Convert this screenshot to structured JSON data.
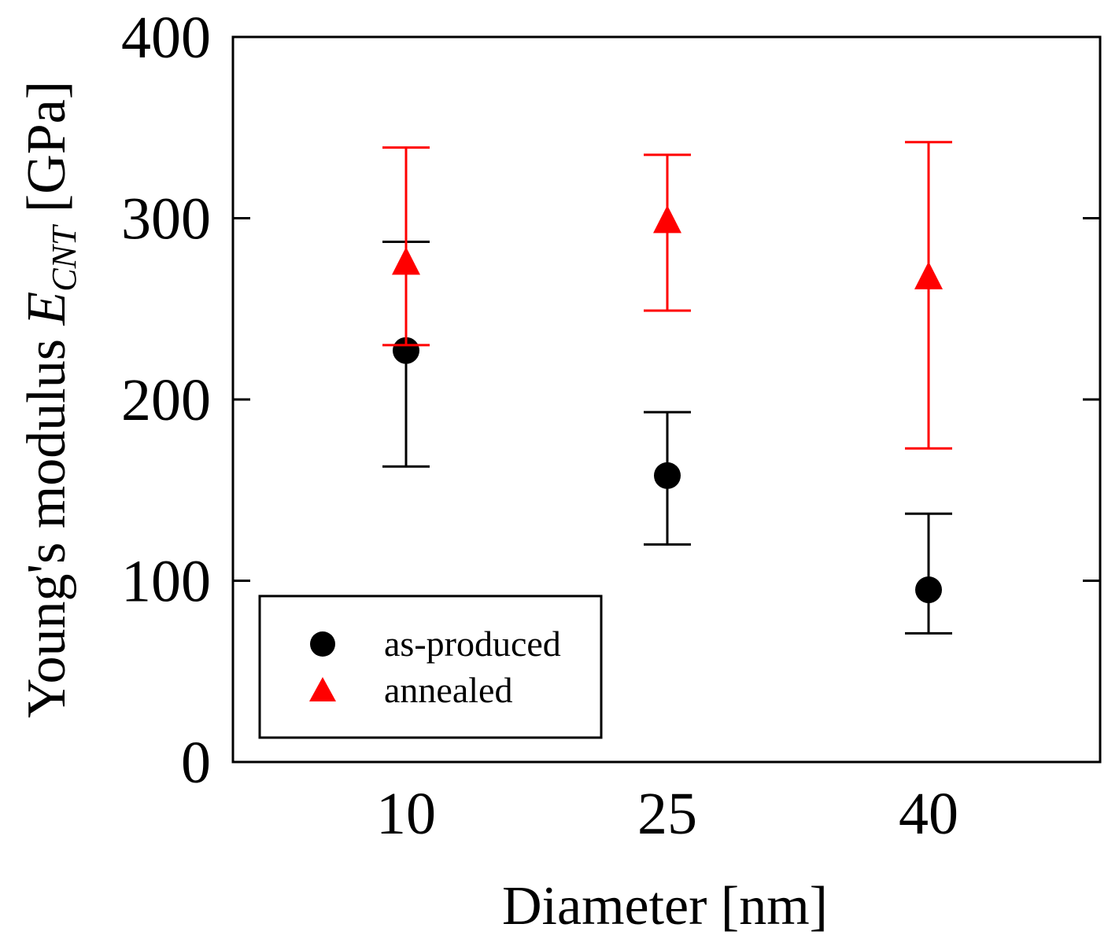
{
  "chart_data": {
    "type": "scatter",
    "xlabel": "Diameter [nm]",
    "ylabel": {
      "prefix": "Young's modulus ",
      "symbol": "E",
      "subscript": "CNT",
      "unit": " [GPa]"
    },
    "categories": [
      "10",
      "25",
      "40"
    ],
    "ylim": [
      0,
      400
    ],
    "yticks": [
      0,
      100,
      200,
      300,
      400
    ],
    "legend_position": "bottom-left",
    "series": [
      {
        "name": "as-produced",
        "marker": "circle",
        "color": "#000000",
        "values": [
          227,
          158,
          95
        ],
        "err_low": [
          163,
          120,
          71
        ],
        "err_high": [
          287,
          193,
          137
        ]
      },
      {
        "name": "annealed",
        "marker": "triangle",
        "color": "#ff0000",
        "values": [
          275,
          298,
          267
        ],
        "err_low": [
          230,
          249,
          173
        ],
        "err_high": [
          339,
          335,
          342
        ]
      }
    ]
  }
}
